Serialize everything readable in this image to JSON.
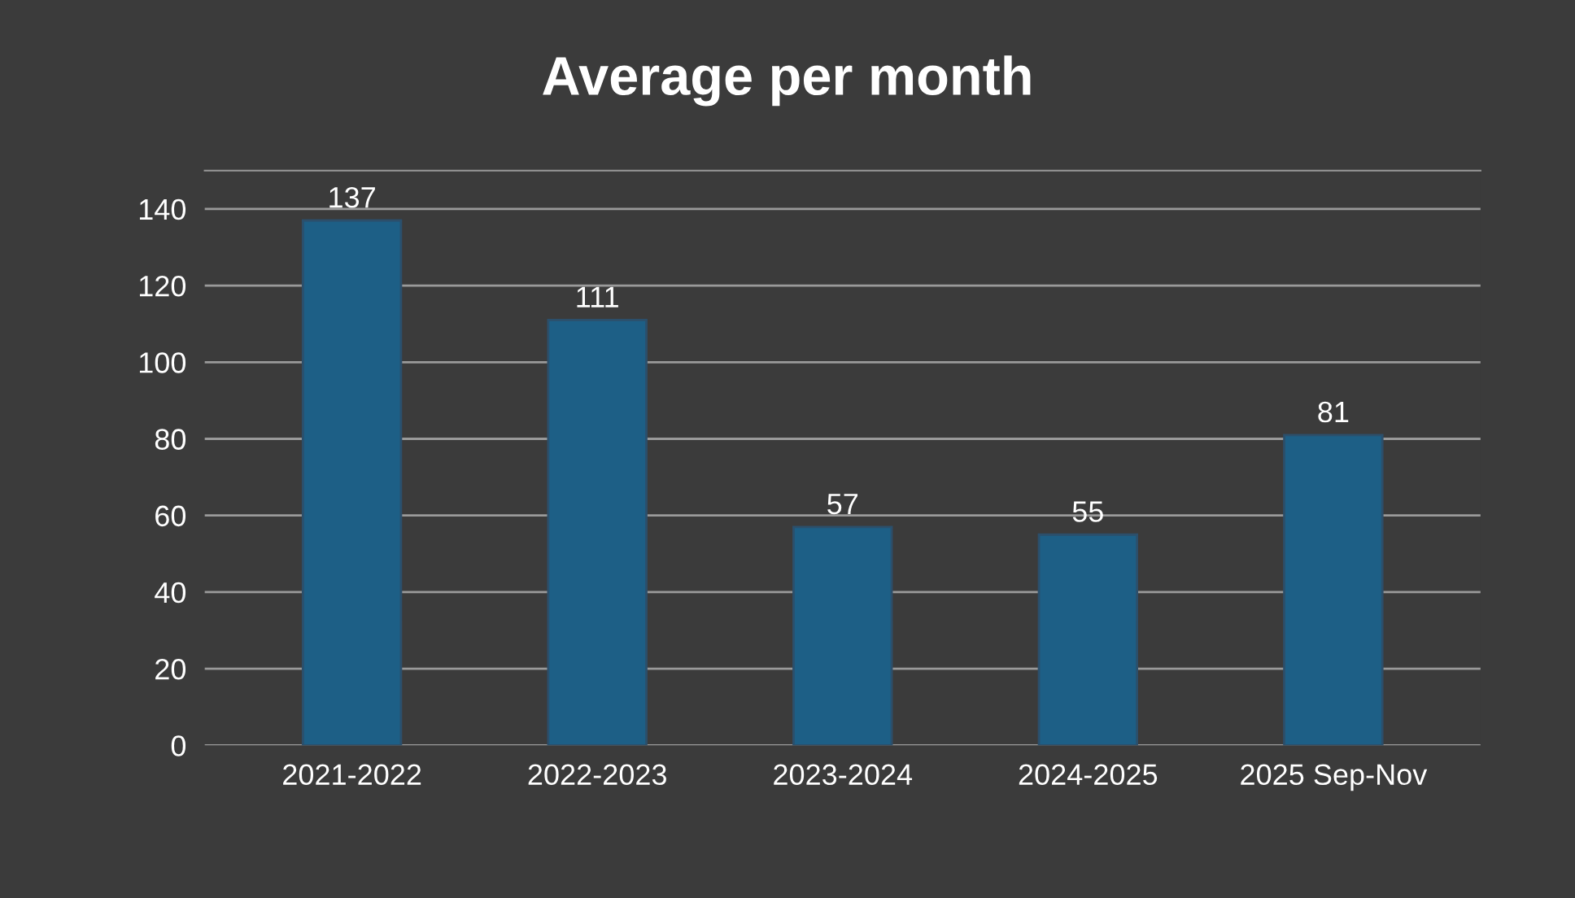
{
  "chart_data": {
    "type": "bar",
    "title": "Average per month",
    "categories": [
      "2021-2022",
      "2022-2023",
      "2023-2024",
      "2024-2025",
      "2025 Sep-Nov"
    ],
    "values": [
      137,
      111,
      57,
      55,
      81
    ],
    "color": "#1d5f86",
    "ylim": [
      0,
      150
    ],
    "yticks": [
      0,
      20,
      40,
      60,
      80,
      100,
      120,
      140
    ],
    "grid": "y",
    "data_labels": true
  }
}
